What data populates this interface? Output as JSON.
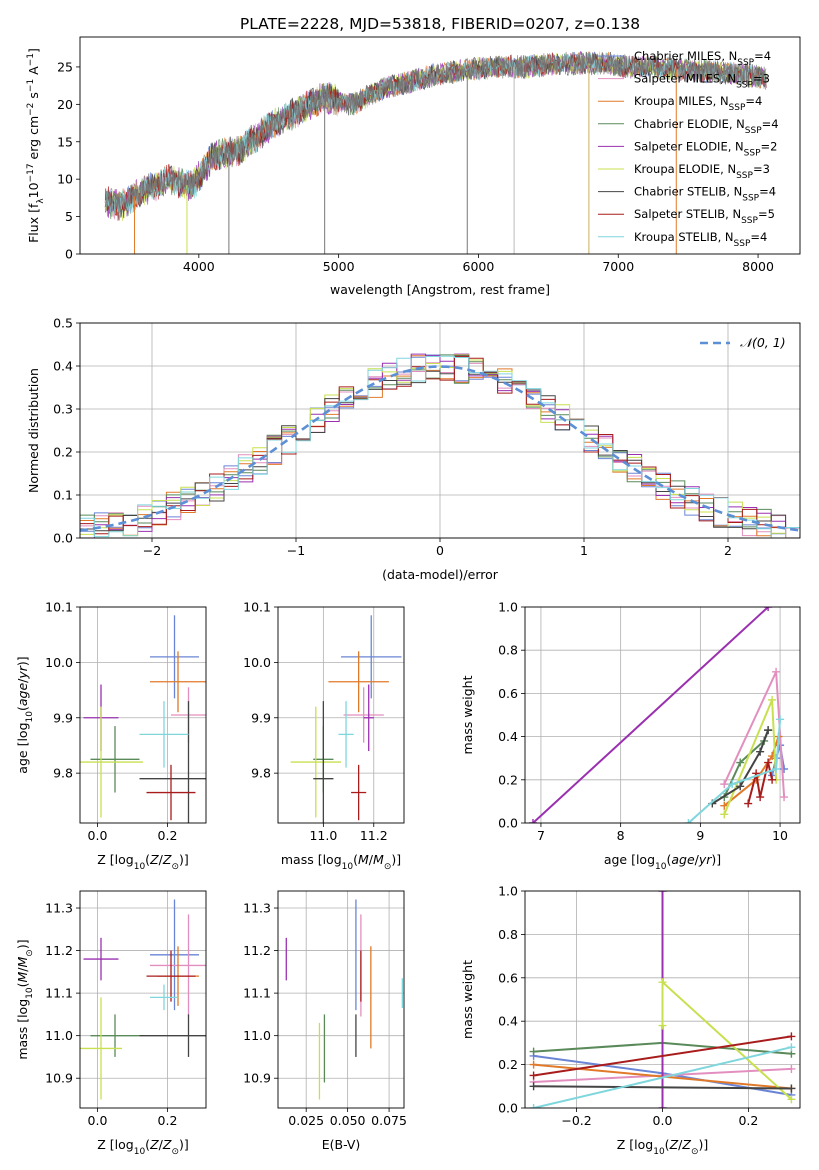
{
  "title": "PLATE=2228, MJD=53818, FIBERID=0207, z=0.138",
  "models": [
    {
      "name": "Chabrier MILES",
      "nssp": "4",
      "color": "#6a85d6"
    },
    {
      "name": "Salpeter MILES",
      "nssp": "3",
      "color": "#e28fbf"
    },
    {
      "name": "Kroupa MILES",
      "nssp": "4",
      "color": "#e07a2a"
    },
    {
      "name": "Chabrier ELODIE",
      "nssp": "4",
      "color": "#5a8a5a"
    },
    {
      "name": "Salpeter ELODIE",
      "nssp": "2",
      "color": "#9a30b0"
    },
    {
      "name": "Kroupa ELODIE",
      "nssp": "3",
      "color": "#c8e050"
    },
    {
      "name": "Chabrier STELIB",
      "nssp": "4",
      "color": "#444444"
    },
    {
      "name": "Salpeter STELIB",
      "nssp": "5",
      "color": "#a81c1c"
    },
    {
      "name": "Kroupa STELIB",
      "nssp": "4",
      "color": "#7fd6dd"
    }
  ],
  "chart_data": [
    {
      "id": "spectrum",
      "type": "line",
      "xlabel": "wavelength [Angstrom, rest frame]",
      "ylabel": "Flux [f_λ 10^-17 erg cm^-2 s^-1 A^-1]",
      "xlim": [
        3150,
        8300
      ],
      "ylim": [
        0,
        29
      ],
      "xticks": [
        4000,
        5000,
        6000,
        7000,
        8000
      ],
      "yticks": [
        0,
        5,
        10,
        15,
        20,
        25
      ],
      "grid": false,
      "legend": "top-right",
      "spectrum_points": [
        [
          3330,
          7
        ],
        [
          3450,
          6.5
        ],
        [
          3600,
          8.5
        ],
        [
          3800,
          10
        ],
        [
          3950,
          9
        ],
        [
          4100,
          13
        ],
        [
          4300,
          14
        ],
        [
          4500,
          17
        ],
        [
          4700,
          19
        ],
        [
          4900,
          21
        ],
        [
          5100,
          20
        ],
        [
          5300,
          22
        ],
        [
          5500,
          23
        ],
        [
          5700,
          24
        ],
        [
          5900,
          24.5
        ],
        [
          6100,
          25
        ],
        [
          6300,
          25
        ],
        [
          6500,
          25.3
        ],
        [
          6700,
          25.5
        ],
        [
          6900,
          25.5
        ],
        [
          7100,
          25
        ],
        [
          7300,
          25
        ],
        [
          7500,
          24.5
        ],
        [
          7700,
          24.3
        ],
        [
          7900,
          24
        ],
        [
          8060,
          23.5
        ]
      ]
    },
    {
      "id": "residuals",
      "type": "histogram",
      "xlabel": "(data-model)/error",
      "ylabel": "Normed distribution",
      "xlim": [
        -2.5,
        2.5
      ],
      "ylim": [
        0,
        0.5
      ],
      "xticks": [
        -2,
        -1,
        0,
        1,
        2
      ],
      "xtick_labels": [
        "−2",
        "−1",
        "0",
        "1",
        "2"
      ],
      "yticks": [
        0,
        0.1,
        0.2,
        0.3,
        0.4,
        0.5
      ],
      "ytick_labels": [
        "0.0",
        "0.1",
        "0.2",
        "0.3",
        "0.4",
        "0.5"
      ],
      "grid": true,
      "legend": "top-right",
      "reference_curve": {
        "label": "𝒩(0, 1)",
        "mean": 0,
        "sigma": 1
      }
    },
    {
      "id": "age_vs_Z",
      "type": "errorbar",
      "xlabel": "Z [log10(Z/Z⊙)]",
      "ylabel": "age [log10(age/yr)]",
      "xlim": [
        -0.05,
        0.31
      ],
      "ylim": [
        9.71,
        10.1
      ],
      "xticks": [
        0.0,
        0.2
      ],
      "xtick_labels": [
        "0.0",
        "0.2"
      ],
      "yticks": [
        9.8,
        9.9,
        10.0,
        10.1
      ],
      "ytick_labels": [
        "9.8",
        "9.9",
        "10.0",
        "10.1"
      ],
      "grid": true,
      "points": [
        {
          "x": 0.22,
          "y": 10.01,
          "xerr": 0.07,
          "yerr": 0.075
        },
        {
          "x": 0.26,
          "y": 9.905,
          "xerr": 0.05,
          "yerr": 0.05
        },
        {
          "x": 0.23,
          "y": 9.965,
          "xerr": 0.08,
          "yerr": 0.055
        },
        {
          "x": 0.05,
          "y": 9.825,
          "xerr": 0.07,
          "yerr": 0.06
        },
        {
          "x": 0.01,
          "y": 9.9,
          "xerr": 0.05,
          "yerr": 0.06
        },
        {
          "x": 0.01,
          "y": 9.82,
          "xerr": 0.12,
          "yerr": 0.1
        },
        {
          "x": 0.26,
          "y": 9.79,
          "xerr": 0.14,
          "yerr": 0.14
        },
        {
          "x": 0.21,
          "y": 9.765,
          "xerr": 0.07,
          "yerr": 0.05
        },
        {
          "x": 0.19,
          "y": 9.87,
          "xerr": 0.07,
          "yerr": 0.06
        }
      ]
    },
    {
      "id": "age_vs_mass",
      "type": "errorbar",
      "xlabel": "mass [log10(M/M⊙)]",
      "ylabel": "",
      "xlim": [
        10.82,
        11.32
      ],
      "ylim": [
        9.71,
        10.1
      ],
      "xticks": [
        11.0,
        11.2
      ],
      "xtick_labels": [
        "11.0",
        "11.2"
      ],
      "yticks": [
        9.8,
        9.9,
        10.0,
        10.1
      ],
      "ytick_labels": [
        "9.8",
        "9.9",
        "10.0",
        "10.1"
      ],
      "grid": true,
      "points": [
        {
          "x": 11.19,
          "y": 10.01,
          "xerr": 0.12,
          "yerr": 0.075
        },
        {
          "x": 11.16,
          "y": 9.905,
          "xerr": 0.08,
          "yerr": 0.05
        },
        {
          "x": 11.14,
          "y": 9.965,
          "xerr": 0.12,
          "yerr": 0.055
        },
        {
          "x": 11.0,
          "y": 9.825,
          "xerr": 0.04,
          "yerr": 0.06
        },
        {
          "x": 11.18,
          "y": 9.9,
          "xerr": 0.02,
          "yerr": 0.06
        },
        {
          "x": 10.97,
          "y": 9.82,
          "xerr": 0.1,
          "yerr": 0.1
        },
        {
          "x": 11.0,
          "y": 9.79,
          "xerr": 0.04,
          "yerr": 0.14
        },
        {
          "x": 11.14,
          "y": 9.765,
          "xerr": 0.03,
          "yerr": 0.05
        },
        {
          "x": 11.09,
          "y": 9.87,
          "xerr": 0.03,
          "yerr": 0.06
        }
      ]
    },
    {
      "id": "weight_vs_age",
      "type": "line",
      "xlabel": "age [log10(age/yr)]",
      "ylabel": "mass weight",
      "xlim": [
        6.8,
        10.25
      ],
      "ylim": [
        0,
        1
      ],
      "xticks": [
        7,
        8,
        9,
        10
      ],
      "xtick_labels": [
        "7",
        "8",
        "9",
        "10"
      ],
      "yticks": [
        0,
        0.2,
        0.4,
        0.6,
        0.8,
        1.0
      ],
      "ytick_labels": [
        "0.0",
        "0.2",
        "0.4",
        "0.6",
        "0.8",
        "1.0"
      ],
      "grid": true,
      "series": [
        {
          "x": [
            9.9,
            9.95,
            10.0,
            10.05
          ],
          "y": [
            0.22,
            0.3,
            0.36,
            0.25
          ]
        },
        {
          "x": [
            9.3,
            9.95,
            10.05
          ],
          "y": [
            0.18,
            0.7,
            0.12
          ]
        },
        {
          "x": [
            9.3,
            9.7,
            9.9,
            9.98
          ],
          "y": [
            0.08,
            0.2,
            0.31,
            0.4
          ]
        },
        {
          "x": [
            9.3,
            9.5,
            9.8,
            9.85
          ],
          "y": [
            0.12,
            0.28,
            0.38,
            0.43
          ]
        },
        {
          "x": [
            6.9,
            9.85
          ],
          "y": [
            0.0,
            1.0
          ]
        },
        {
          "x": [
            9.3,
            9.9,
            9.95
          ],
          "y": [
            0.04,
            0.57,
            0.2
          ]
        },
        {
          "x": [
            9.15,
            9.5,
            9.75,
            9.85
          ],
          "y": [
            0.09,
            0.17,
            0.33,
            0.43
          ]
        },
        {
          "x": [
            9.6,
            9.7,
            9.75,
            9.85,
            9.9
          ],
          "y": [
            0.09,
            0.23,
            0.12,
            0.28,
            0.2
          ]
        },
        {
          "x": [
            8.85,
            9.4,
            9.95,
            10.0
          ],
          "y": [
            0.0,
            0.18,
            0.25,
            0.48
          ]
        }
      ]
    },
    {
      "id": "mass_vs_Z",
      "type": "errorbar",
      "xlabel": "Z [log10(Z/Z⊙)]",
      "ylabel": "mass [log10(M/M⊙)]",
      "xlim": [
        -0.05,
        0.31
      ],
      "ylim": [
        10.83,
        11.34
      ],
      "xticks": [
        0.0,
        0.2
      ],
      "xtick_labels": [
        "0.0",
        "0.2"
      ],
      "yticks": [
        10.9,
        11.0,
        11.1,
        11.2,
        11.3
      ],
      "ytick_labels": [
        "10.9",
        "11.0",
        "11.1",
        "11.2",
        "11.3"
      ],
      "grid": true,
      "points": [
        {
          "x": 0.22,
          "y": 11.19,
          "xerr": 0.07,
          "yerr": 0.13
        },
        {
          "x": 0.26,
          "y": 11.165,
          "xerr": 0.11,
          "yerr": 0.12
        },
        {
          "x": 0.23,
          "y": 11.14,
          "xerr": 0.06,
          "yerr": 0.07
        },
        {
          "x": 0.05,
          "y": 11.0,
          "xerr": 0.07,
          "yerr": 0.05
        },
        {
          "x": 0.01,
          "y": 11.18,
          "xerr": 0.05,
          "yerr": 0.05
        },
        {
          "x": 0.01,
          "y": 10.97,
          "xerr": 0.06,
          "yerr": 0.12
        },
        {
          "x": 0.26,
          "y": 11.0,
          "xerr": 0.14,
          "yerr": 0.05
        },
        {
          "x": 0.21,
          "y": 11.14,
          "xerr": 0.07,
          "yerr": 0.06
        },
        {
          "x": 0.19,
          "y": 11.09,
          "xerr": 0.04,
          "yerr": 0.03
        }
      ]
    },
    {
      "id": "mass_vs_EBV",
      "type": "errorbar",
      "xlabel": "E(B-V)",
      "ylabel": "",
      "xlim": [
        0.008,
        0.084
      ],
      "ylim": [
        10.83,
        11.34
      ],
      "xticks": [
        0.025,
        0.05,
        0.075
      ],
      "xtick_labels": [
        "0.025",
        "0.050",
        "0.075"
      ],
      "yticks": [
        10.9,
        11.0,
        11.1,
        11.2,
        11.3
      ],
      "ytick_labels": [
        "10.9",
        "11.0",
        "11.1",
        "11.2",
        "11.3"
      ],
      "grid": true,
      "points": [
        {
          "x": 0.055,
          "y": 11.19,
          "xerr": 0,
          "yerr": 0.13
        },
        {
          "x": 0.058,
          "y": 11.165,
          "xerr": 0,
          "yerr": 0.12
        },
        {
          "x": 0.064,
          "y": 11.09,
          "xerr": 0,
          "yerr": 0.12
        },
        {
          "x": 0.036,
          "y": 10.97,
          "xerr": 0,
          "yerr": 0.08
        },
        {
          "x": 0.013,
          "y": 11.18,
          "xerr": 0,
          "yerr": 0.05
        },
        {
          "x": 0.033,
          "y": 10.94,
          "xerr": 0,
          "yerr": 0.09
        },
        {
          "x": 0.055,
          "y": 11.0,
          "xerr": 0,
          "yerr": 0.05
        },
        {
          "x": 0.058,
          "y": 11.14,
          "xerr": 0,
          "yerr": 0.06
        },
        {
          "x": 0.083,
          "y": 11.1,
          "xerr": 0,
          "yerr": 0.035
        }
      ]
    },
    {
      "id": "weight_vs_Z",
      "type": "line",
      "xlabel": "Z [log10(Z/Z⊙)]",
      "ylabel": "mass weight",
      "xlim": [
        -0.32,
        0.32
      ],
      "ylim": [
        0,
        1
      ],
      "xticks": [
        -0.2,
        0.0,
        0.2
      ],
      "xtick_labels": [
        "−0.2",
        "0.0",
        "0.2"
      ],
      "yticks": [
        0,
        0.2,
        0.4,
        0.6,
        0.8,
        1.0
      ],
      "ytick_labels": [
        "0.0",
        "0.2",
        "0.4",
        "0.6",
        "0.8",
        "1.0"
      ],
      "grid": true,
      "series": [
        {
          "x": [
            -0.3,
            0.0,
            0.3
          ],
          "y": [
            0.24,
            0.16,
            0.06
          ]
        },
        {
          "x": [
            -0.3,
            0.3
          ],
          "y": [
            0.12,
            0.18
          ]
        },
        {
          "x": [
            -0.3,
            0.3
          ],
          "y": [
            0.2,
            0.09
          ]
        },
        {
          "x": [
            -0.3,
            0.0,
            0.3
          ],
          "y": [
            0.26,
            0.3,
            0.25
          ]
        },
        {
          "x": [
            0.0,
            0.0
          ],
          "y": [
            0.0,
            1.0
          ]
        },
        {
          "x": [
            0.0,
            0.0,
            0.3
          ],
          "y": [
            0.38,
            0.58,
            0.04
          ]
        },
        {
          "x": [
            -0.3,
            0.3
          ],
          "y": [
            0.1,
            0.09
          ]
        },
        {
          "x": [
            -0.3,
            0.3
          ],
          "y": [
            0.15,
            0.33
          ]
        },
        {
          "x": [
            -0.3,
            0.3
          ],
          "y": [
            0.0,
            0.28
          ]
        }
      ]
    }
  ]
}
